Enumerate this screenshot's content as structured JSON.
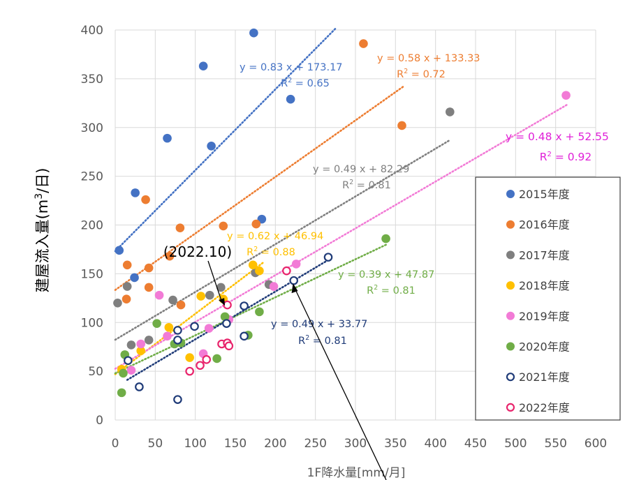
{
  "chart_data": {
    "type": "scatter",
    "xlabel": "1F降水量[mm/月]",
    "ylabel_main": "建屋流入量(m",
    "ylabel_sup": "3",
    "ylabel_tail": "/日)",
    "xlim": [
      0,
      600
    ],
    "ylim": [
      0,
      400
    ],
    "xticks": [
      0,
      50,
      100,
      150,
      200,
      250,
      300,
      350,
      400,
      450,
      500,
      550,
      600
    ],
    "yticks": [
      0,
      50,
      100,
      150,
      200,
      250,
      300,
      350,
      400
    ],
    "grid": true,
    "legend_position": "right",
    "annotation_text": "(2022.10)",
    "annotation_point": [
      137,
      118
    ],
    "arrow_target": [
      222,
      143
    ],
    "series": [
      {
        "name": "2015年度",
        "marker": "filled",
        "color": "#4472C4",
        "points": [
          [
            5,
            174
          ],
          [
            25,
            233
          ],
          [
            24,
            146
          ],
          [
            65,
            289
          ],
          [
            110,
            363
          ],
          [
            120,
            281
          ],
          [
            173,
            397
          ],
          [
            183,
            206
          ],
          [
            219,
            329
          ]
        ],
        "trend": {
          "slope": 0.83,
          "intercept": 173.17,
          "x": [
            0,
            275
          ]
        },
        "eq": "y = 0.83 x + 173.17",
        "r2_value": "0.65",
        "label_color": "#4472C4"
      },
      {
        "name": "2016年度",
        "marker": "filled",
        "color": "#ED7D31",
        "points": [
          [
            15,
            159
          ],
          [
            14,
            124
          ],
          [
            38,
            226
          ],
          [
            42,
            156
          ],
          [
            42,
            136
          ],
          [
            68,
            168
          ],
          [
            81,
            197
          ],
          [
            82,
            118
          ],
          [
            135,
            199
          ],
          [
            176,
            201
          ],
          [
            310,
            386
          ],
          [
            358,
            302
          ]
        ],
        "trend": {
          "slope": 0.58,
          "intercept": 133.33,
          "x": [
            0,
            360
          ]
        },
        "eq": "y = 0.58 x + 133.33",
        "r2_value": "0.72",
        "label_color": "#ED7D31"
      },
      {
        "name": "2017年度",
        "marker": "filled",
        "color": "#7F7F7F",
        "points": [
          [
            3,
            120
          ],
          [
            15,
            137
          ],
          [
            20,
            77
          ],
          [
            42,
            82
          ],
          [
            72,
            123
          ],
          [
            118,
            128
          ],
          [
            132,
            136
          ],
          [
            175,
            151
          ],
          [
            192,
            139
          ],
          [
            418,
            316
          ]
        ],
        "trend": {
          "slope": 0.49,
          "intercept": 82.29,
          "x": [
            0,
            418
          ]
        },
        "eq": "y = 0.49 x + 82.29",
        "r2_value": "0.81",
        "label_color": "#7F7F7F"
      },
      {
        "name": "2018年度",
        "marker": "filled",
        "color": "#FFC000",
        "points": [
          [
            8,
            52
          ],
          [
            32,
            71
          ],
          [
            67,
            95
          ],
          [
            93,
            64
          ],
          [
            107,
            127
          ],
          [
            135,
            124
          ],
          [
            172,
            159
          ],
          [
            180,
            153
          ]
        ],
        "trend": {
          "slope": 0.62,
          "intercept": 46.94,
          "x": [
            0,
            185
          ]
        },
        "eq": "y = 0.62 x + 46.94",
        "r2_value": "0.88",
        "label_color": "#FFC000"
      },
      {
        "name": "2019年度",
        "marker": "filled",
        "color": "#F27BD6",
        "points": [
          [
            20,
            51
          ],
          [
            32,
            78
          ],
          [
            55,
            128
          ],
          [
            65,
            86
          ],
          [
            110,
            68
          ],
          [
            117,
            94
          ],
          [
            142,
            103
          ],
          [
            198,
            137
          ],
          [
            226,
            160
          ],
          [
            563,
            333
          ]
        ],
        "trend": {
          "slope": 0.48,
          "intercept": 52.55,
          "x": [
            0,
            565
          ]
        },
        "eq": "y = 0.48 x + 52.55",
        "r2_value": "0.92",
        "label_color": "#E020D8"
      },
      {
        "name": "2020年度",
        "marker": "filled",
        "color": "#70AD47",
        "points": [
          [
            8,
            28
          ],
          [
            12,
            67
          ],
          [
            10,
            48
          ],
          [
            52,
            99
          ],
          [
            74,
            78
          ],
          [
            82,
            79
          ],
          [
            127,
            63
          ],
          [
            137,
            106
          ],
          [
            166,
            87
          ],
          [
            180,
            111
          ],
          [
            338,
            186
          ]
        ],
        "trend": {
          "slope": 0.39,
          "intercept": 47.87,
          "x": [
            0,
            340
          ]
        },
        "eq": "y = 0.39 x + 47.87",
        "r2_value": "0.81",
        "label_color": "#70AD47"
      },
      {
        "name": "2021年度",
        "marker": "hollow",
        "color": "#1F3B78",
        "points": [
          [
            16,
            61
          ],
          [
            30,
            34
          ],
          [
            78,
            92
          ],
          [
            78,
            82
          ],
          [
            78,
            21
          ],
          [
            99,
            96
          ],
          [
            139,
            99
          ],
          [
            161,
            117
          ],
          [
            161,
            86
          ],
          [
            223,
            143
          ],
          [
            266,
            167
          ]
        ],
        "trend": {
          "slope": 0.49,
          "intercept": 33.77,
          "x": [
            15,
            268
          ]
        },
        "eq": "y = 0.49 x + 33.77",
        "r2_value": "0.81",
        "label_color": "#1F3B78"
      },
      {
        "name": "2022年度",
        "marker": "hollow",
        "color": "#E8246C",
        "points": [
          [
            93,
            50
          ],
          [
            106,
            56
          ],
          [
            114,
            62
          ],
          [
            133,
            78
          ],
          [
            140,
            79
          ],
          [
            142,
            76
          ],
          [
            140,
            118
          ],
          [
            214,
            153
          ]
        ],
        "trend": null,
        "eq": "",
        "r2_value": "",
        "label_color": "#E8246C"
      }
    ]
  }
}
